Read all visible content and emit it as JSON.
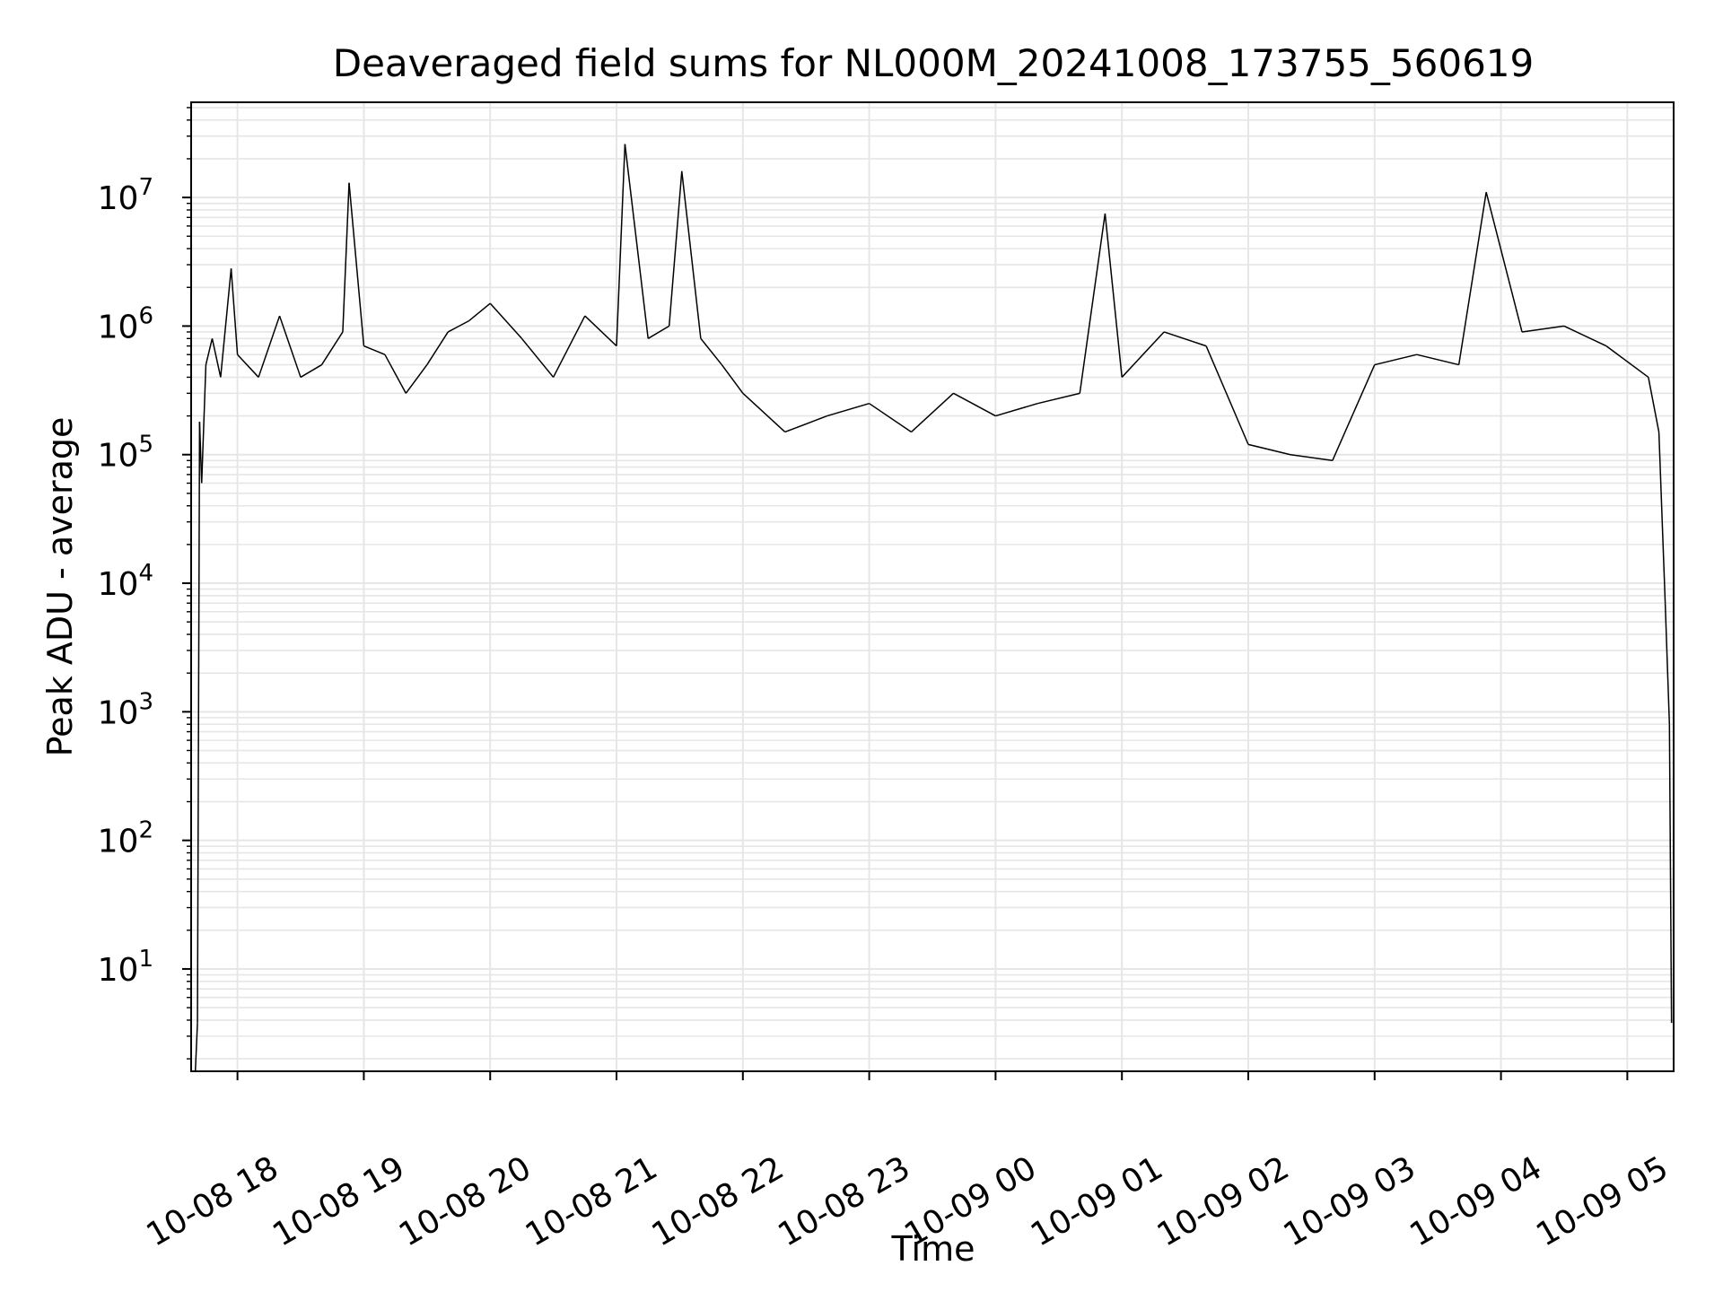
{
  "chart_data": {
    "type": "line",
    "title": "Deaveraged field sums for NL000M_20241008_173755_560619",
    "xlabel": "Time",
    "ylabel": "Peak ADU - average",
    "yscale": "log",
    "ylim": [
      1.6,
      55000000
    ],
    "xlim": [
      "2024-10-08 17:38",
      "2024-10-09 05:22"
    ],
    "grid": true,
    "line_color": "#000000",
    "grid_color": "#e6e6e6",
    "x_ticks": [
      {
        "value": "2024-10-08 18:00",
        "label": "10-08 18"
      },
      {
        "value": "2024-10-08 19:00",
        "label": "10-08 19"
      },
      {
        "value": "2024-10-08 20:00",
        "label": "10-08 20"
      },
      {
        "value": "2024-10-08 21:00",
        "label": "10-08 21"
      },
      {
        "value": "2024-10-08 22:00",
        "label": "10-08 22"
      },
      {
        "value": "2024-10-08 23:00",
        "label": "10-08 23"
      },
      {
        "value": "2024-10-09 00:00",
        "label": "10-09 00"
      },
      {
        "value": "2024-10-09 01:00",
        "label": "10-09 01"
      },
      {
        "value": "2024-10-09 02:00",
        "label": "10-09 02"
      },
      {
        "value": "2024-10-09 03:00",
        "label": "10-09 03"
      },
      {
        "value": "2024-10-09 04:00",
        "label": "10-09 04"
      },
      {
        "value": "2024-10-09 05:00",
        "label": "10-09 05"
      }
    ],
    "y_ticks": [
      {
        "value": 10,
        "base": "10",
        "exp": "1"
      },
      {
        "value": 100,
        "base": "10",
        "exp": "2"
      },
      {
        "value": 1000,
        "base": "10",
        "exp": "3"
      },
      {
        "value": 10000,
        "base": "10",
        "exp": "4"
      },
      {
        "value": 100000,
        "base": "10",
        "exp": "5"
      },
      {
        "value": 1000000,
        "base": "10",
        "exp": "6"
      },
      {
        "value": 10000000,
        "base": "10",
        "exp": "7"
      }
    ],
    "series": [
      {
        "x": [
          "2024-10-08 17:40",
          "2024-10-08 17:41",
          "2024-10-08 17:42",
          "2024-10-08 17:43",
          "2024-10-08 17:45",
          "2024-10-08 17:48",
          "2024-10-08 17:52",
          "2024-10-08 17:57",
          "2024-10-08 18:00",
          "2024-10-08 18:10",
          "2024-10-08 18:20",
          "2024-10-08 18:30",
          "2024-10-08 18:40",
          "2024-10-08 18:50",
          "2024-10-08 18:53",
          "2024-10-08 19:00",
          "2024-10-08 19:10",
          "2024-10-08 19:20",
          "2024-10-08 19:30",
          "2024-10-08 19:40",
          "2024-10-08 19:50",
          "2024-10-08 20:00",
          "2024-10-08 20:15",
          "2024-10-08 20:30",
          "2024-10-08 20:45",
          "2024-10-08 21:00",
          "2024-10-08 21:04",
          "2024-10-08 21:15",
          "2024-10-08 21:25",
          "2024-10-08 21:31",
          "2024-10-08 21:40",
          "2024-10-08 21:50",
          "2024-10-08 22:00",
          "2024-10-08 22:20",
          "2024-10-08 22:40",
          "2024-10-08 23:00",
          "2024-10-08 23:20",
          "2024-10-08 23:40",
          "2024-10-09 00:00",
          "2024-10-09 00:20",
          "2024-10-09 00:40",
          "2024-10-09 00:52",
          "2024-10-09 01:00",
          "2024-10-09 01:20",
          "2024-10-09 01:40",
          "2024-10-09 02:00",
          "2024-10-09 02:20",
          "2024-10-09 02:40",
          "2024-10-09 03:00",
          "2024-10-09 03:20",
          "2024-10-09 03:40",
          "2024-10-09 03:53",
          "2024-10-09 04:10",
          "2024-10-09 04:30",
          "2024-10-09 04:50",
          "2024-10-09 05:10",
          "2024-10-09 05:15",
          "2024-10-09 05:18",
          "2024-10-09 05:20",
          "2024-10-09 05:21"
        ],
        "y": [
          1.6,
          3.8,
          180000,
          60000,
          500000,
          800000,
          400000,
          2800000,
          600000,
          400000,
          1200000,
          400000,
          500000,
          900000,
          13000000,
          700000,
          600000,
          300000,
          500000,
          900000,
          1100000,
          1500000,
          800000,
          400000,
          1200000,
          700000,
          26000000,
          800000,
          1000000,
          16000000,
          800000,
          500000,
          300000,
          150000,
          200000,
          250000,
          150000,
          300000,
          200000,
          250000,
          300000,
          7500000,
          400000,
          900000,
          700000,
          120000,
          100000,
          90000,
          500000,
          600000,
          500000,
          11000000,
          900000,
          1000000,
          700000,
          400000,
          150000,
          7000,
          800,
          3.8
        ]
      }
    ]
  }
}
